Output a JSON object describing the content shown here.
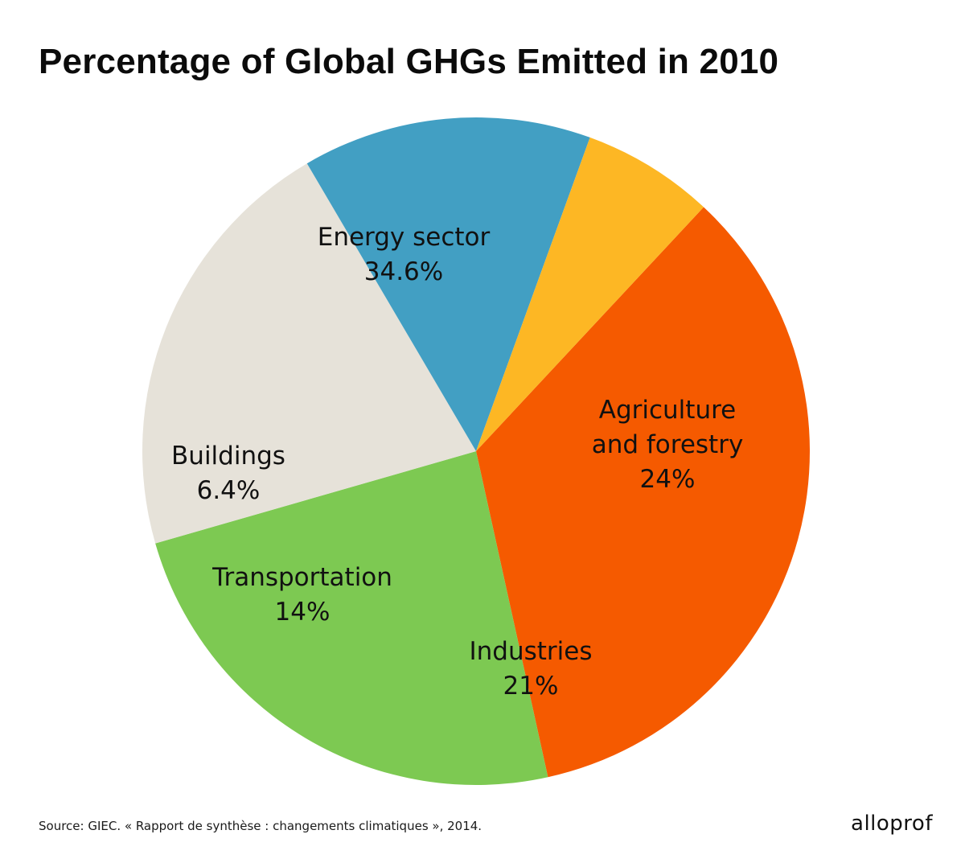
{
  "header": {
    "title": "Percentage of Global GHGs Emitted in 2010"
  },
  "footer": {
    "source": "Source: GIEC. « Rapport de synthèse : changements climatiques », 2014.",
    "brand": "alloprof"
  },
  "chart_data": {
    "type": "pie",
    "title": "Percentage of Global GHGs Emitted in 2010",
    "slices": [
      {
        "label_lines": [
          "Energy sector"
        ],
        "value_text": "34.6%",
        "value": 34.6,
        "color": "#F55A00"
      },
      {
        "label_lines": [
          "Agriculture",
          "and forestry"
        ],
        "value_text": "24%",
        "value": 24,
        "color": "#7DC952"
      },
      {
        "label_lines": [
          "Industries"
        ],
        "value_text": "21%",
        "value": 21,
        "color": "#E6E2D9"
      },
      {
        "label_lines": [
          "Transportation"
        ],
        "value_text": "14%",
        "value": 14,
        "color": "#429FC3"
      },
      {
        "label_lines": [
          "Buildings"
        ],
        "value_text": "6.4%",
        "value": 6.4,
        "color": "#FDB724"
      }
    ]
  }
}
